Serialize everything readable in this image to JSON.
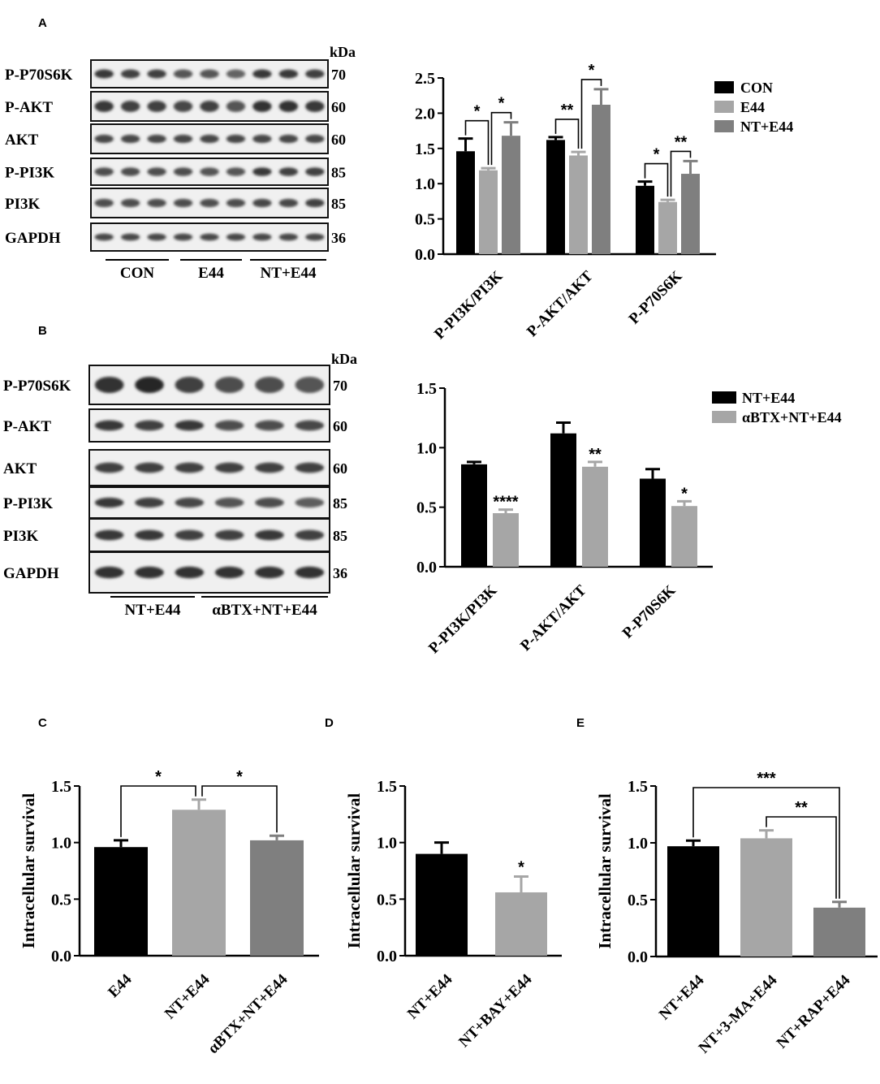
{
  "panels": {
    "A": "A",
    "B": "B",
    "C": "C",
    "D": "D",
    "E": "E"
  },
  "blot_A": {
    "rows": [
      {
        "label": "P-P70S6K",
        "kda": "70"
      },
      {
        "label": "P-AKT",
        "kda": "60"
      },
      {
        "label": "AKT",
        "kda": "60"
      },
      {
        "label": "P-PI3K",
        "kda": "85"
      },
      {
        "label": "PI3K",
        "kda": "85"
      },
      {
        "label": "GAPDH",
        "kda": "36"
      }
    ],
    "kda_header": "kDa",
    "groups": [
      "CON",
      "E44",
      "NT+E44"
    ]
  },
  "blot_B": {
    "rows": [
      {
        "label": "P-P70S6K",
        "kda": "70"
      },
      {
        "label": "P-AKT",
        "kda": "60"
      },
      {
        "label": "AKT",
        "kda": "60"
      },
      {
        "label": "P-PI3K",
        "kda": "85"
      },
      {
        "label": "PI3K",
        "kda": "85"
      },
      {
        "label": "GAPDH",
        "kda": "36"
      }
    ],
    "kda_header": "kDa",
    "groups": [
      "NT+E44",
      "αBTX+NT+E44"
    ]
  },
  "chart_data": [
    {
      "id": "A",
      "type": "bar",
      "categories": [
        "P-PI3K/PI3K",
        "P-AKT/AKT",
        "P-P70S6K"
      ],
      "series": [
        {
          "name": "CON",
          "color": "#000000",
          "values": [
            1.46,
            1.62,
            0.97
          ],
          "errors": [
            0.18,
            0.04,
            0.06
          ]
        },
        {
          "name": "E44",
          "color": "#a6a6a6",
          "values": [
            1.19,
            1.4,
            0.74
          ],
          "errors": [
            0.03,
            0.05,
            0.03
          ]
        },
        {
          "name": "NT+E44",
          "color": "#7f7f7f",
          "values": [
            1.68,
            2.12,
            1.14
          ],
          "errors": [
            0.19,
            0.22,
            0.18
          ]
        }
      ],
      "ylim": [
        0,
        2.5
      ],
      "yticks": [
        "0.0",
        "0.5",
        "1.0",
        "1.5",
        "2.0",
        "2.5"
      ],
      "significance": [
        {
          "text": "*",
          "x": "P-PI3K/PI3K"
        },
        {
          "text": "*",
          "x": "P-PI3K/PI3K"
        },
        {
          "text": "**",
          "x": "P-AKT/AKT"
        },
        {
          "text": "*",
          "x": "P-AKT/AKT"
        },
        {
          "text": "*",
          "x": "P-P70S6K"
        },
        {
          "text": "**",
          "x": "P-P70S6K"
        }
      ],
      "legend_position": "top-right"
    },
    {
      "id": "B",
      "type": "bar",
      "categories": [
        "P-PI3K/PI3K",
        "P-AKT/AKT",
        "P-P70S6K"
      ],
      "series": [
        {
          "name": "NT+E44",
          "color": "#000000",
          "values": [
            0.86,
            1.12,
            0.74
          ],
          "errors": [
            0.02,
            0.09,
            0.08
          ]
        },
        {
          "name": "αBTX+NT+E44",
          "color": "#a6a6a6",
          "values": [
            0.45,
            0.84,
            0.51
          ],
          "errors": [
            0.03,
            0.04,
            0.04
          ]
        }
      ],
      "ylim": [
        0,
        1.5
      ],
      "yticks": [
        "0.0",
        "0.5",
        "1.0",
        "1.5"
      ],
      "significance": [
        {
          "text": "****"
        },
        {
          "text": "**"
        },
        {
          "text": "*"
        }
      ],
      "legend_position": "top-right"
    },
    {
      "id": "C",
      "type": "bar",
      "categories": [
        "E44",
        "NT+E44",
        "αBTX+NT+E44"
      ],
      "values": [
        0.96,
        1.29,
        1.02
      ],
      "errors": [
        0.06,
        0.09,
        0.04
      ],
      "colors": [
        "#000000",
        "#a6a6a6",
        "#7f7f7f"
      ],
      "ylabel": "Intracellular survival",
      "ylim": [
        0,
        1.5
      ],
      "yticks": [
        "0.0",
        "0.5",
        "1.0",
        "1.5"
      ],
      "significance": [
        {
          "text": "*"
        },
        {
          "text": "*"
        }
      ]
    },
    {
      "id": "D",
      "type": "bar",
      "categories": [
        "NT+E44",
        "NT+BAY+E44"
      ],
      "values": [
        0.9,
        0.56
      ],
      "errors": [
        0.1,
        0.14
      ],
      "colors": [
        "#000000",
        "#a6a6a6"
      ],
      "ylabel": "Intracellular survival",
      "ylim": [
        0,
        1.5
      ],
      "yticks": [
        "0.0",
        "0.5",
        "1.0",
        "1.5"
      ],
      "significance": [
        {
          "text": "*"
        }
      ]
    },
    {
      "id": "E",
      "type": "bar",
      "categories": [
        "NT+E44",
        "NT+3-MA+E44",
        "NT+RAP+E44"
      ],
      "values": [
        0.97,
        1.04,
        0.43
      ],
      "errors": [
        0.05,
        0.07,
        0.05
      ],
      "colors": [
        "#000000",
        "#a6a6a6",
        "#7f7f7f"
      ],
      "ylabel": "Intracellular survival",
      "ylim": [
        0,
        1.5
      ],
      "yticks": [
        "0.0",
        "0.5",
        "1.0",
        "1.5"
      ],
      "significance": [
        {
          "text": "***"
        },
        {
          "text": "**"
        }
      ]
    }
  ]
}
